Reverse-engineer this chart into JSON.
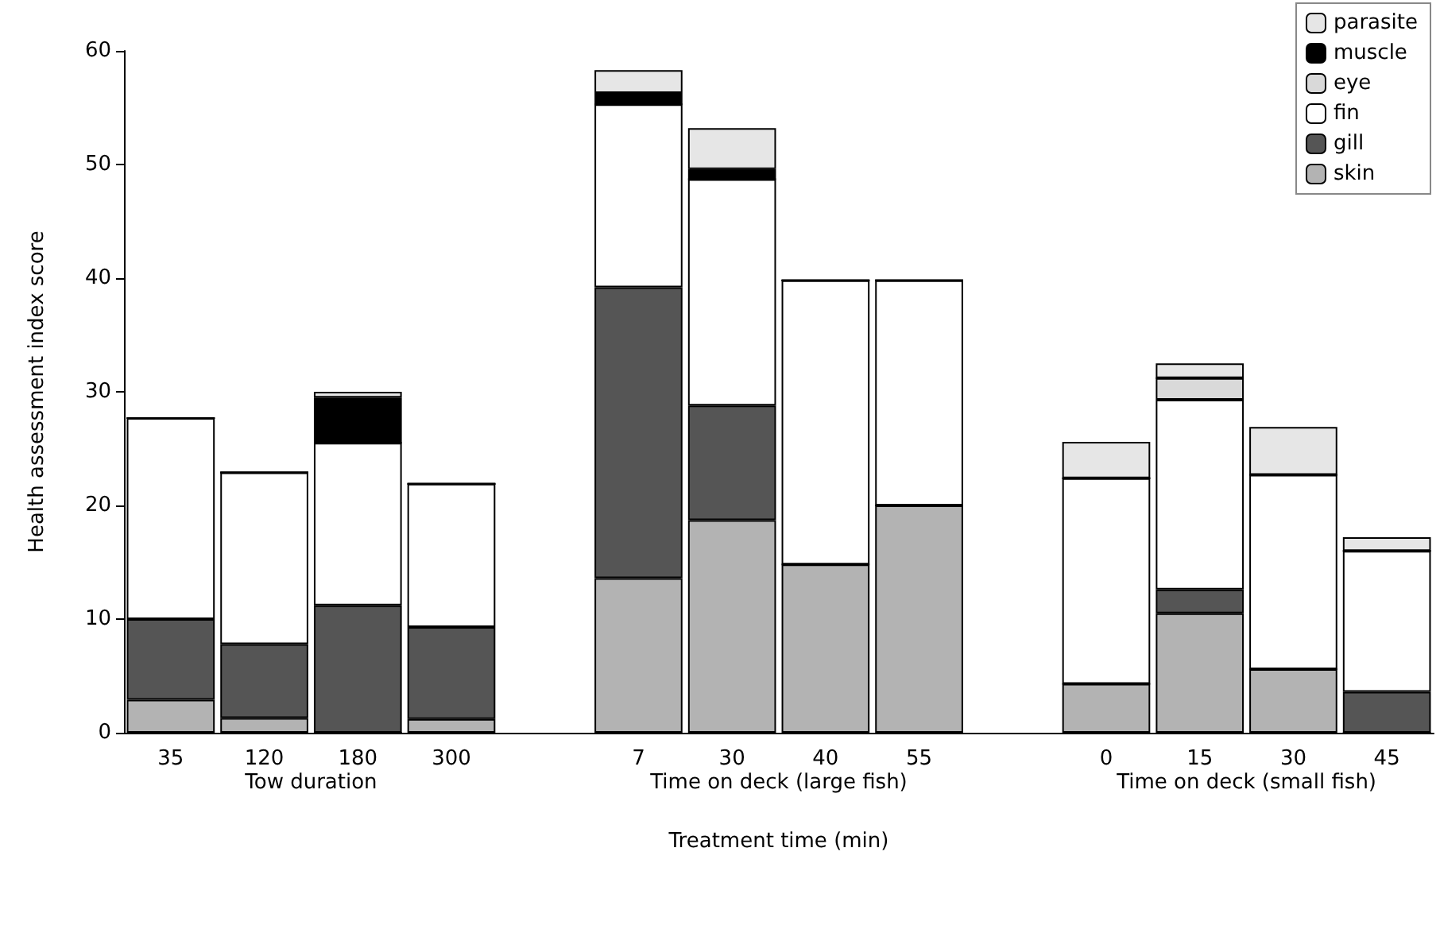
{
  "chart_data": {
    "type": "bar",
    "stacked": true,
    "xlabel": "Treatment time (min)",
    "ylabel": "Health assessment index score",
    "categories": [
      "35",
      "120",
      "180",
      "300",
      null,
      "7",
      "30",
      "40",
      "55",
      null,
      "0",
      "15",
      "30",
      "45"
    ],
    "series": [
      {
        "name": "skin",
        "color": "#b3b3b3",
        "values": [
          2.9,
          1.3,
          0,
          1.2,
          null,
          13.6,
          18.7,
          14.8,
          20.0,
          null,
          4.3,
          10.5,
          5.6,
          0
        ]
      },
      {
        "name": "gill",
        "color": "#555555",
        "values": [
          7.1,
          6.5,
          11.2,
          8.1,
          null,
          25.6,
          10.1,
          0,
          0,
          null,
          0,
          2.1,
          0,
          3.6
        ]
      },
      {
        "name": "fin",
        "color": "#ffffff",
        "values": [
          17.7,
          15.1,
          14.3,
          12.6,
          null,
          16.1,
          19.9,
          25.0,
          19.8,
          null,
          18.1,
          16.7,
          17.1,
          12.4
        ]
      },
      {
        "name": "eye",
        "color": "#d9d9d9",
        "values": [
          0,
          0,
          0,
          0,
          null,
          0,
          0,
          0,
          0,
          null,
          0,
          1.9,
          0,
          0
        ]
      },
      {
        "name": "muscle",
        "color": "#000000",
        "values": [
          0,
          0,
          4.0,
          0,
          null,
          1.0,
          0.9,
          0,
          0,
          null,
          0,
          0,
          0,
          0
        ]
      },
      {
        "name": "parasite",
        "color": "#e6e6e6",
        "values": [
          0,
          0,
          0.5,
          0,
          null,
          2.0,
          3.6,
          0,
          0,
          null,
          3.2,
          1.3,
          4.2,
          1.2
        ]
      }
    ],
    "annotations": [
      "Tow duration",
      "Time on deck (large fish)",
      "Time on deck (small fish)"
    ],
    "ylim": [
      0,
      60
    ],
    "yticks": [
      0,
      10,
      20,
      30,
      40,
      50,
      60
    ],
    "grid": false,
    "legend": "top right"
  }
}
